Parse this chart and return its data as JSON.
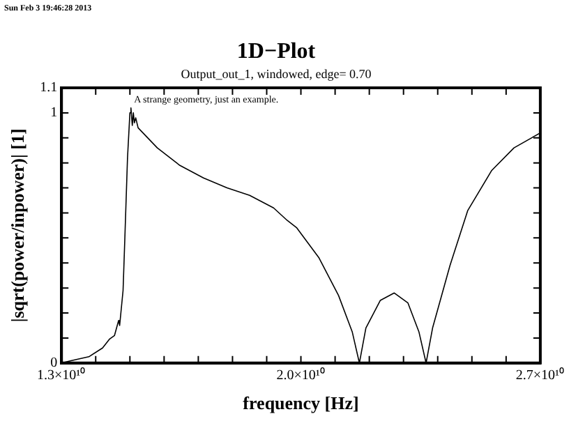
{
  "chart_data": {
    "type": "line",
    "title": "1D−Plot",
    "subtitle": "Output_out_1, windowed, edge= 0.70",
    "xlabel": "frequency [Hz]",
    "ylabel": "|sqrt(power/inpower)| [1]",
    "annotations": [
      "Sun Feb 3 19:46:28 2013",
      "A strange geometry, just an example."
    ],
    "series": [
      {
        "color": "#000000",
        "x": [
          13000000000.0,
          13300000000.0,
          13800000000.0,
          14200000000.0,
          14400000000.0,
          14550000000.0,
          14670000000.0,
          14700000000.0,
          14800000000.0,
          14850000000.0,
          14930000000.0,
          15000000000.0,
          15030000000.0,
          15070000000.0,
          15100000000.0,
          15130000000.0,
          15170000000.0,
          15240000000.0,
          15800000000.0,
          16460000000.0,
          17150000000.0,
          17840000000.0,
          18500000000.0,
          19200000000.0,
          19600000000.0,
          19880000000.0,
          20530000000.0,
          21100000000.0,
          21500000000.0,
          21710000000.0,
          21900000000.0,
          22320000000.0,
          22730000000.0,
          23130000000.0,
          23450000000.0,
          23660000000.0,
          23850000000.0,
          24360000000.0,
          24880000000.0,
          25580000000.0,
          26230000000.0,
          27000000000.0
        ],
        "values": [
          0,
          0.01,
          0.025,
          0.06,
          0.095,
          0.11,
          0.17,
          0.15,
          0.29,
          0.49,
          0.82,
          1.0,
          1.02,
          0.95,
          1.0,
          0.96,
          0.98,
          0.94,
          0.86,
          0.79,
          0.74,
          0.7,
          0.67,
          0.62,
          0.57,
          0.54,
          0.42,
          0.27,
          0.125,
          0,
          0.14,
          0.25,
          0.28,
          0.24,
          0.125,
          0,
          0.14,
          0.39,
          0.61,
          0.77,
          0.86,
          0.92
        ]
      }
    ],
    "xlim": [
      13000000000.0,
      27000000000.0
    ],
    "xticks": [
      {
        "value": 13000000000.0,
        "label": "1.3×10¹⁰"
      },
      {
        "value": 14000000000.0,
        "label": null
      },
      {
        "value": 15000000000.0,
        "label": null
      },
      {
        "value": 16000000000.0,
        "label": null
      },
      {
        "value": 17000000000.0,
        "label": null
      },
      {
        "value": 18000000000.0,
        "label": null
      },
      {
        "value": 19000000000.0,
        "label": null
      },
      {
        "value": 20000000000.0,
        "label": "2.0×10¹⁰"
      },
      {
        "value": 21000000000.0,
        "label": null
      },
      {
        "value": 22000000000.0,
        "label": null
      },
      {
        "value": 23000000000.0,
        "label": null
      },
      {
        "value": 24000000000.0,
        "label": null
      },
      {
        "value": 25000000000.0,
        "label": null
      },
      {
        "value": 26000000000.0,
        "label": null
      },
      {
        "value": 27000000000.0,
        "label": "2.7×10¹⁰"
      }
    ],
    "ylim": [
      0,
      1.1
    ],
    "yticks": [
      0,
      {
        "value": 0.1,
        "label": null
      },
      {
        "value": 0.2,
        "label": null
      },
      {
        "value": 0.3,
        "label": null
      },
      {
        "value": 0.4,
        "label": null
      },
      {
        "value": 0.5,
        "label": null
      },
      {
        "value": 0.6,
        "label": null
      },
      {
        "value": 0.7,
        "label": null
      },
      {
        "value": 0.8,
        "label": null
      },
      {
        "value": 0.9,
        "label": null
      },
      1,
      1.1
    ],
    "marker": "none",
    "line_style": "solid",
    "legend": false
  }
}
